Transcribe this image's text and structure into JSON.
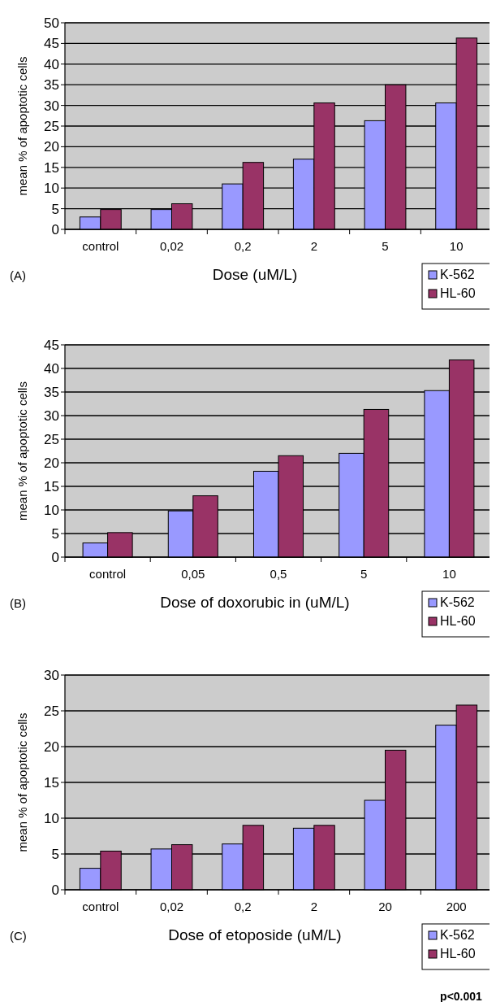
{
  "chart_data": [
    {
      "type": "bar",
      "xlabel": "Dose (uM/L)",
      "ylabel": "mean % of apoptotic cells",
      "annotations": [
        "(A)"
      ],
      "categories": [
        "control",
        "0,02",
        "0,2",
        "2",
        "5",
        "10"
      ],
      "ylim": [
        0,
        50
      ],
      "yticks": [
        0,
        5,
        10,
        15,
        20,
        25,
        30,
        35,
        40,
        45,
        50
      ],
      "grid": "y",
      "legend": "bottom right",
      "series": [
        {
          "name": "K-562",
          "color": "#9999ff",
          "values": [
            3,
            4.8,
            11,
            17,
            26.3,
            30.6
          ]
        },
        {
          "name": "HL-60",
          "color": "#993366",
          "values": [
            4.8,
            6.2,
            16.2,
            30.6,
            35,
            46.3
          ]
        }
      ]
    },
    {
      "type": "bar",
      "xlabel": "Dose of doxorubic in (uM/L)",
      "ylabel": "mean % of apoptotic cells",
      "annotations": [
        "(B)"
      ],
      "categories": [
        "control",
        "0,05",
        "0,5",
        "5",
        "10"
      ],
      "ylim": [
        0,
        45
      ],
      "yticks": [
        0,
        5,
        10,
        15,
        20,
        25,
        30,
        35,
        40,
        45
      ],
      "grid": "y",
      "legend": "bottom right",
      "series": [
        {
          "name": "K-562",
          "color": "#9999ff",
          "values": [
            3,
            9.8,
            18.2,
            22,
            35.3
          ]
        },
        {
          "name": "HL-60",
          "color": "#993366",
          "values": [
            5.2,
            13,
            21.5,
            31.3,
            41.8
          ]
        }
      ]
    },
    {
      "type": "bar",
      "xlabel": "Dose of etoposide (uM/L)",
      "ylabel": "mean % of apoptotic cells",
      "annotations": [
        "(C)",
        "p<0.001"
      ],
      "categories": [
        "control",
        "0,02",
        "0,2",
        "2",
        "20",
        "200"
      ],
      "ylim": [
        0,
        30
      ],
      "yticks": [
        0,
        5,
        10,
        15,
        20,
        25,
        30
      ],
      "grid": "y",
      "legend": "bottom right",
      "series": [
        {
          "name": "K-562",
          "color": "#9999ff",
          "values": [
            3,
            5.7,
            6.4,
            8.6,
            12.5,
            23
          ]
        },
        {
          "name": "HL-60",
          "color": "#993366",
          "values": [
            5.4,
            6.3,
            9,
            9,
            19.5,
            25.8
          ]
        }
      ]
    }
  ]
}
